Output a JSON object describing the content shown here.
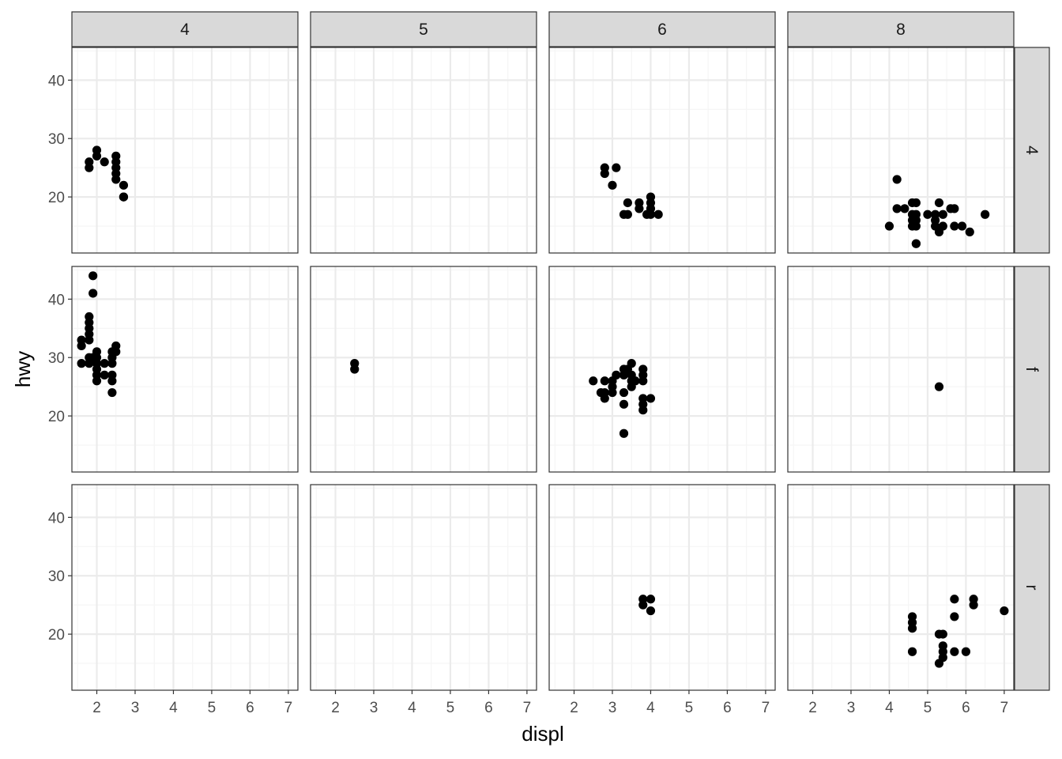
{
  "chart_data": {
    "type": "scatter",
    "xlabel": "displ",
    "ylabel": "hwy",
    "xlim": [
      1.35,
      7.25
    ],
    "ylim": [
      10.4,
      45.6
    ],
    "x_ticks": [
      2,
      3,
      4,
      5,
      6,
      7
    ],
    "y_ticks": [
      20,
      30,
      40
    ],
    "grid": true,
    "facet_cols": [
      "4",
      "5",
      "6",
      "8"
    ],
    "facet_rows": [
      "4",
      "f",
      "r"
    ],
    "colors": {
      "point": "#000000",
      "strip_fill": "#d9d9d9",
      "strip_border": "#333333",
      "panel_border": "#333333",
      "grid_major": "#ebebeb",
      "grid_minor": "#f5f5f5"
    },
    "panels": [
      {
        "row": "4",
        "col": "4",
        "points": [
          [
            1.8,
            26
          ],
          [
            1.8,
            25
          ],
          [
            2.0,
            28
          ],
          [
            2.0,
            27
          ],
          [
            2.2,
            26
          ],
          [
            2.5,
            27
          ],
          [
            2.5,
            26
          ],
          [
            2.5,
            25
          ],
          [
            2.5,
            24
          ],
          [
            2.5,
            23
          ],
          [
            2.7,
            22
          ],
          [
            2.7,
            20
          ],
          [
            2.7,
            20
          ]
        ]
      },
      {
        "row": "4",
        "col": "5",
        "points": []
      },
      {
        "row": "4",
        "col": "6",
        "points": [
          [
            2.8,
            25
          ],
          [
            2.8,
            24
          ],
          [
            3.1,
            25
          ],
          [
            3.0,
            22
          ],
          [
            3.3,
            17
          ],
          [
            3.4,
            17
          ],
          [
            3.4,
            19
          ],
          [
            3.7,
            19
          ],
          [
            3.7,
            18
          ],
          [
            3.9,
            17
          ],
          [
            4.0,
            20
          ],
          [
            4.0,
            19
          ],
          [
            4.0,
            18
          ],
          [
            4.0,
            17
          ],
          [
            4.2,
            17
          ]
        ]
      },
      {
        "row": "4",
        "col": "8",
        "points": [
          [
            4.0,
            15
          ],
          [
            4.2,
            23
          ],
          [
            4.2,
            18
          ],
          [
            4.4,
            18
          ],
          [
            4.6,
            19
          ],
          [
            4.6,
            17
          ],
          [
            4.6,
            16
          ],
          [
            4.6,
            15
          ],
          [
            4.7,
            19
          ],
          [
            4.7,
            17
          ],
          [
            4.7,
            16
          ],
          [
            4.7,
            15
          ],
          [
            4.7,
            12
          ],
          [
            4.7,
            12
          ],
          [
            5.0,
            17
          ],
          [
            5.2,
            17
          ],
          [
            5.2,
            16
          ],
          [
            5.2,
            15
          ],
          [
            5.3,
            19
          ],
          [
            5.3,
            14
          ],
          [
            5.4,
            17
          ],
          [
            5.4,
            15
          ],
          [
            5.6,
            18
          ],
          [
            5.7,
            18
          ],
          [
            5.7,
            15
          ],
          [
            5.9,
            15
          ],
          [
            6.1,
            14
          ],
          [
            6.5,
            17
          ]
        ]
      },
      {
        "row": "f",
        "col": "4",
        "points": [
          [
            1.6,
            33
          ],
          [
            1.6,
            32
          ],
          [
            1.6,
            29
          ],
          [
            1.8,
            37
          ],
          [
            1.8,
            36
          ],
          [
            1.8,
            35
          ],
          [
            1.8,
            34
          ],
          [
            1.8,
            33
          ],
          [
            1.8,
            30
          ],
          [
            1.8,
            29
          ],
          [
            1.9,
            44
          ],
          [
            1.9,
            41
          ],
          [
            1.9,
            30
          ],
          [
            2.0,
            31
          ],
          [
            2.0,
            30
          ],
          [
            2.0,
            29
          ],
          [
            2.0,
            28
          ],
          [
            2.0,
            27
          ],
          [
            2.0,
            26
          ],
          [
            2.2,
            29
          ],
          [
            2.2,
            27
          ],
          [
            2.4,
            31
          ],
          [
            2.4,
            30
          ],
          [
            2.4,
            29
          ],
          [
            2.4,
            27
          ],
          [
            2.4,
            26
          ],
          [
            2.4,
            24
          ],
          [
            2.5,
            32
          ],
          [
            2.5,
            31
          ]
        ]
      },
      {
        "row": "f",
        "col": "5",
        "points": [
          [
            2.5,
            29
          ],
          [
            2.5,
            28
          ]
        ]
      },
      {
        "row": "f",
        "col": "6",
        "points": [
          [
            2.5,
            26
          ],
          [
            2.7,
            24
          ],
          [
            2.8,
            26
          ],
          [
            2.8,
            24
          ],
          [
            2.8,
            23
          ],
          [
            3.0,
            26
          ],
          [
            3.0,
            25
          ],
          [
            3.0,
            24
          ],
          [
            3.1,
            27
          ],
          [
            3.3,
            28
          ],
          [
            3.3,
            27
          ],
          [
            3.3,
            24
          ],
          [
            3.3,
            22
          ],
          [
            3.3,
            17
          ],
          [
            3.4,
            28
          ],
          [
            3.5,
            29
          ],
          [
            3.5,
            27
          ],
          [
            3.5,
            26
          ],
          [
            3.5,
            25
          ],
          [
            3.6,
            26
          ],
          [
            3.8,
            28
          ],
          [
            3.8,
            27
          ],
          [
            3.8,
            26
          ],
          [
            3.8,
            23
          ],
          [
            3.8,
            22
          ],
          [
            3.8,
            21
          ],
          [
            4.0,
            23
          ]
        ]
      },
      {
        "row": "f",
        "col": "8",
        "points": [
          [
            5.3,
            25
          ]
        ]
      },
      {
        "row": "r",
        "col": "4",
        "points": []
      },
      {
        "row": "r",
        "col": "5",
        "points": []
      },
      {
        "row": "r",
        "col": "6",
        "points": [
          [
            3.8,
            26
          ],
          [
            3.8,
            25
          ],
          [
            4.0,
            26
          ],
          [
            4.0,
            24
          ]
        ]
      },
      {
        "row": "r",
        "col": "8",
        "points": [
          [
            4.6,
            23
          ],
          [
            4.6,
            22
          ],
          [
            4.6,
            21
          ],
          [
            4.6,
            17
          ],
          [
            5.3,
            20
          ],
          [
            5.3,
            15
          ],
          [
            5.4,
            20
          ],
          [
            5.4,
            18
          ],
          [
            5.4,
            17
          ],
          [
            5.4,
            16
          ],
          [
            5.7,
            26
          ],
          [
            5.7,
            23
          ],
          [
            5.7,
            17
          ],
          [
            6.0,
            17
          ],
          [
            6.2,
            26
          ],
          [
            6.2,
            25
          ],
          [
            7.0,
            24
          ]
        ]
      }
    ]
  }
}
